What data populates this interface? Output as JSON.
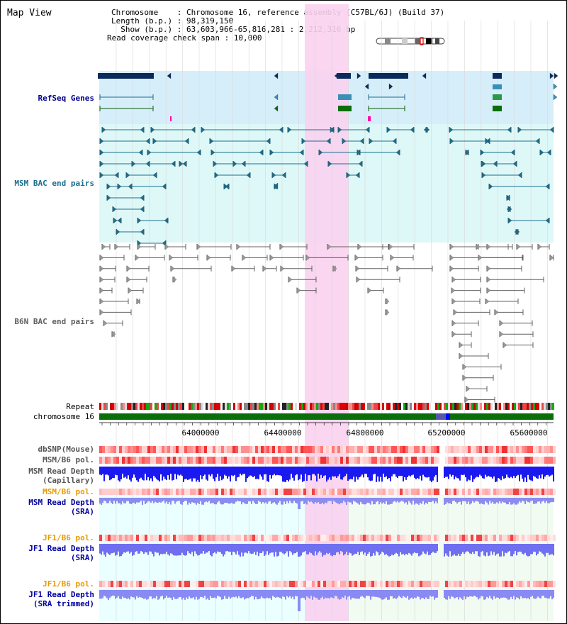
{
  "view": {
    "title": "Map View"
  },
  "info": {
    "chromosome": "Chromosome    : Chromosome 16, reference assembly (C57BL/6J) (Build 37)",
    "length": "Length (b.p.) : 98,319,150",
    "show": "  Show (b.p.) : 63,603,966-65,816,281 : 2,212,316 bp",
    "coverage": "Read coverage check span : 10,000"
  },
  "tracks": {
    "refseq": "RefSeq Genes",
    "msm_bac": "MSM BAC end pairs",
    "b6n_bac": "B6N BAC end pairs",
    "repeat": "Repeat",
    "chromosome": "chromosome 16",
    "dbsnp": "dbSNP(Mouse)",
    "msm_b6_pol": "MSM/B6 pol.",
    "msm_read_depth_cap_1": "MSM Read Depth",
    "msm_read_depth_cap_2": "(Capillary)",
    "msm_b6_pol2": "MSM/B6 pol.",
    "msm_read_depth_sra_1": "MSM Read Depth",
    "msm_read_depth_sra_2": "(SRA)",
    "jf1_b6_pol": "JF1/B6 pol.",
    "jf1_read_depth_sra_1": "JF1 Read Depth",
    "jf1_read_depth_sra_2": "(SRA)",
    "jf1_b6_pol2": "JF1/B6 pol.",
    "jf1_read_depth_trim_1": "JF1 Read Depth",
    "jf1_read_depth_trim_2": "(SRA trimmed)"
  },
  "axis": {
    "ticks": [
      "64000000",
      "64400000",
      "64800000",
      "65200000",
      "65600000"
    ]
  },
  "colors": {
    "refseq_label": "#00008b",
    "msm_label": "#1a6e8e",
    "b6n_label": "#606060",
    "orange_label": "#e89a00",
    "blue_label": "#0000a0",
    "highlight": "#f9d2f0",
    "refseq_bg": "#d6eefa",
    "msm_bg": "#def8f8",
    "chrom_green": "#0a6e0a"
  }
}
